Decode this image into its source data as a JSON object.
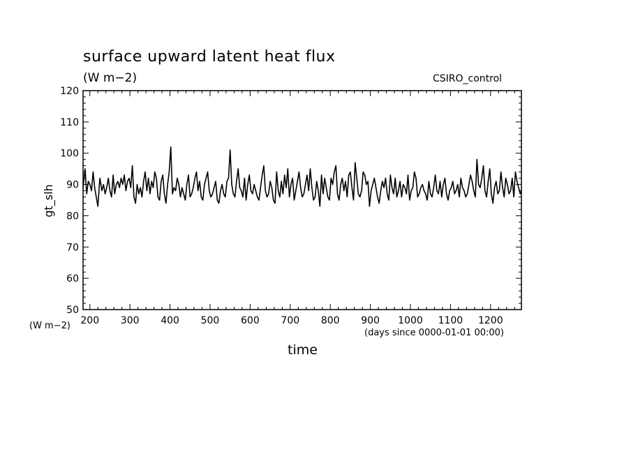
{
  "chart_data": {
    "type": "line",
    "title": "surface upward latent heat flux",
    "subtitle": "(W m−2)",
    "annotation": "CSIRO_control",
    "ylabel": "gt_slh",
    "yunit_label": "(W m−2)",
    "xlabel": "time",
    "xunit_label": "(days since 0000-01-01 00:00)",
    "xlim": [
      183,
      1277
    ],
    "ylim": [
      50,
      120
    ],
    "xticks": [
      200,
      300,
      400,
      500,
      600,
      700,
      800,
      900,
      1000,
      1100,
      1200
    ],
    "yticks": [
      50,
      60,
      70,
      80,
      90,
      100,
      110,
      120
    ],
    "grid": false,
    "line_color": "#000000",
    "series": [
      {
        "x": [
          183,
          188,
          192,
          196,
          200,
          204,
          208,
          212,
          216,
          220,
          225,
          230,
          234,
          238,
          242,
          246,
          250,
          254,
          258,
          262,
          266,
          270,
          274,
          278,
          282,
          286,
          290,
          294,
          298,
          302,
          306,
          310,
          314,
          318,
          322,
          326,
          330,
          334,
          338,
          342,
          346,
          350,
          354,
          358,
          362,
          366,
          370,
          374,
          378,
          382,
          386,
          390,
          394,
          398,
          402,
          406,
          410,
          414,
          418,
          422,
          426,
          430,
          434,
          438,
          442,
          446,
          450,
          454,
          458,
          462,
          466,
          470,
          474,
          478,
          482,
          486,
          490,
          494,
          498,
          502,
          506,
          510,
          514,
          518,
          522,
          526,
          530,
          534,
          538,
          542,
          546,
          550,
          554,
          558,
          562,
          566,
          570,
          574,
          578,
          582,
          586,
          590,
          594,
          598,
          602,
          606,
          610,
          614,
          618,
          622,
          626,
          630,
          634,
          638,
          642,
          646,
          650,
          654,
          658,
          662,
          666,
          670,
          674,
          678,
          682,
          686,
          690,
          694,
          698,
          702,
          706,
          710,
          714,
          718,
          722,
          726,
          730,
          734,
          738,
          742,
          746,
          750,
          754,
          758,
          762,
          766,
          770,
          774,
          778,
          782,
          786,
          790,
          794,
          798,
          802,
          806,
          810,
          814,
          818,
          822,
          826,
          830,
          834,
          838,
          842,
          846,
          850,
          854,
          858,
          862,
          866,
          870,
          874,
          878,
          882,
          886,
          890,
          894,
          898,
          902,
          906,
          910,
          914,
          918,
          922,
          926,
          930,
          934,
          938,
          942,
          946,
          950,
          954,
          958,
          962,
          966,
          970,
          974,
          978,
          982,
          986,
          990,
          994,
          998,
          1002,
          1006,
          1010,
          1014,
          1018,
          1022,
          1026,
          1030,
          1034,
          1038,
          1042,
          1046,
          1050,
          1054,
          1058,
          1062,
          1066,
          1070,
          1074,
          1078,
          1082,
          1086,
          1090,
          1094,
          1098,
          1102,
          1106,
          1110,
          1114,
          1118,
          1122,
          1126,
          1130,
          1134,
          1138,
          1142,
          1146,
          1150,
          1154,
          1158,
          1162,
          1166,
          1170,
          1174,
          1178,
          1182,
          1186,
          1190,
          1194,
          1198,
          1202,
          1206,
          1210,
          1214,
          1218,
          1222,
          1226,
          1230,
          1234,
          1238,
          1242,
          1246,
          1250,
          1254,
          1258,
          1262,
          1266,
          1270,
          1274,
          1277
        ],
        "y": [
          89,
          95,
          87,
          91,
          90,
          88,
          94,
          89,
          86,
          83,
          92,
          88,
          90,
          87,
          89,
          92,
          88,
          86,
          93,
          87,
          90,
          91,
          89,
          92,
          90,
          93,
          88,
          91,
          92,
          89,
          96,
          86,
          84,
          90,
          87,
          89,
          86,
          91,
          94,
          88,
          92,
          87,
          91,
          89,
          94,
          92,
          86,
          85,
          91,
          93,
          87,
          84,
          90,
          94,
          102,
          87,
          89,
          88,
          92,
          90,
          86,
          89,
          87,
          85,
          90,
          93,
          86,
          87,
          89,
          92,
          94,
          88,
          91,
          86,
          85,
          90,
          92,
          94,
          88,
          86,
          87,
          89,
          91,
          85,
          84,
          88,
          90,
          87,
          86,
          91,
          92,
          101,
          90,
          87,
          86,
          91,
          95,
          89,
          88,
          86,
          92,
          85,
          90,
          93,
          88,
          87,
          90,
          88,
          86,
          85,
          89,
          93,
          96,
          88,
          86,
          87,
          91,
          89,
          85,
          84,
          94,
          88,
          86,
          91,
          87,
          93,
          89,
          95,
          86,
          90,
          92,
          85,
          88,
          91,
          94,
          89,
          86,
          87,
          90,
          93,
          88,
          95,
          89,
          85,
          86,
          91,
          88,
          83,
          93,
          87,
          92,
          89,
          86,
          85,
          92,
          90,
          94,
          96,
          87,
          85,
          90,
          92,
          88,
          91,
          86,
          93,
          94,
          89,
          85,
          97,
          92,
          87,
          86,
          88,
          94,
          93,
          90,
          91,
          83,
          88,
          90,
          92,
          89,
          86,
          84,
          88,
          91,
          89,
          92,
          87,
          85,
          93,
          89,
          87,
          92,
          86,
          88,
          91,
          86,
          90,
          89,
          87,
          93,
          85,
          88,
          89,
          94,
          92,
          86,
          87,
          89,
          90,
          88,
          87,
          85,
          91,
          87,
          86,
          89,
          93,
          88,
          87,
          91,
          86,
          90,
          92,
          87,
          85,
          88,
          89,
          91,
          87,
          88,
          90,
          86,
          92,
          89,
          88,
          86,
          87,
          90,
          93,
          91,
          88,
          86,
          98,
          90,
          89,
          92,
          96,
          88,
          86,
          91,
          95,
          87,
          84,
          89,
          91,
          87,
          88,
          94,
          89,
          86,
          92,
          90,
          87,
          88,
          92,
          86,
          94,
          91,
          89,
          87,
          88
        ]
      }
    ]
  }
}
